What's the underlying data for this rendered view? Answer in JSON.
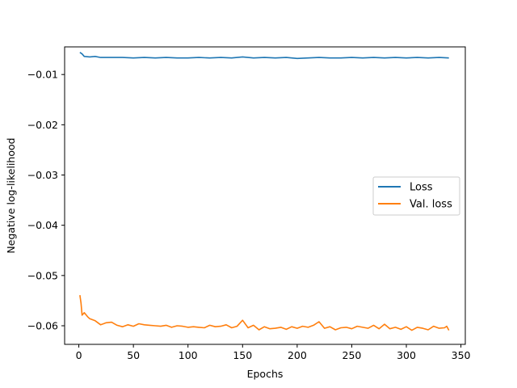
{
  "chart_data": {
    "type": "line",
    "title": "",
    "xlabel": "Epochs",
    "ylabel": "Negative log-likelihood",
    "xlim": [
      -13,
      354
    ],
    "ylim": [
      -0.0637,
      -0.0045
    ],
    "x_ticks": [
      0,
      50,
      100,
      150,
      200,
      250,
      300,
      350
    ],
    "x_tick_labels": [
      "0",
      "50",
      "100",
      "150",
      "200",
      "250",
      "300",
      "350"
    ],
    "y_ticks": [
      -0.01,
      -0.02,
      -0.03,
      -0.04,
      -0.05,
      -0.06
    ],
    "y_tick_labels": [
      "−0.01",
      "−0.02",
      "−0.03",
      "−0.04",
      "−0.05",
      "−0.06"
    ],
    "grid": false,
    "legend": {
      "position": "center-right",
      "entries": [
        "Loss",
        "Val. loss"
      ]
    },
    "series": [
      {
        "name": "Loss",
        "color": "#1f77b4",
        "x": [
          1,
          3,
          5,
          10,
          15,
          20,
          30,
          40,
          50,
          60,
          70,
          80,
          90,
          100,
          110,
          120,
          130,
          140,
          150,
          160,
          170,
          180,
          190,
          200,
          210,
          220,
          230,
          240,
          250,
          260,
          270,
          280,
          290,
          300,
          310,
          320,
          330,
          339
        ],
        "y": [
          -0.0056,
          -0.0059,
          -0.0064,
          -0.0065,
          -0.0064,
          -0.0066,
          -0.0066,
          -0.0066,
          -0.0067,
          -0.0066,
          -0.0067,
          -0.0066,
          -0.0067,
          -0.0067,
          -0.0066,
          -0.0067,
          -0.0066,
          -0.0067,
          -0.0065,
          -0.0067,
          -0.0066,
          -0.0067,
          -0.0066,
          -0.0068,
          -0.0067,
          -0.0066,
          -0.0067,
          -0.0067,
          -0.0066,
          -0.0067,
          -0.0066,
          -0.0067,
          -0.0066,
          -0.0067,
          -0.0066,
          -0.0067,
          -0.0066,
          -0.0067
        ]
      },
      {
        "name": "Val. loss",
        "color": "#ff7f0e",
        "x": [
          1,
          2,
          3,
          5,
          8,
          10,
          15,
          20,
          25,
          30,
          35,
          40,
          45,
          50,
          55,
          60,
          65,
          70,
          75,
          80,
          85,
          90,
          95,
          100,
          105,
          110,
          115,
          120,
          125,
          130,
          135,
          140,
          145,
          150,
          155,
          160,
          165,
          170,
          175,
          180,
          185,
          190,
          195,
          200,
          205,
          210,
          215,
          220,
          225,
          230,
          235,
          240,
          245,
          250,
          255,
          260,
          265,
          270,
          275,
          280,
          285,
          290,
          295,
          300,
          305,
          310,
          315,
          320,
          325,
          330,
          335,
          337,
          339
        ],
        "y": [
          -0.0539,
          -0.0555,
          -0.0579,
          -0.0574,
          -0.0582,
          -0.0586,
          -0.059,
          -0.0598,
          -0.0594,
          -0.0593,
          -0.0599,
          -0.0602,
          -0.0598,
          -0.0601,
          -0.0596,
          -0.0598,
          -0.0599,
          -0.06,
          -0.0601,
          -0.0599,
          -0.0603,
          -0.06,
          -0.0601,
          -0.0603,
          -0.0602,
          -0.0603,
          -0.0604,
          -0.0599,
          -0.0602,
          -0.0601,
          -0.0598,
          -0.0604,
          -0.0601,
          -0.0589,
          -0.0604,
          -0.0599,
          -0.0608,
          -0.0602,
          -0.0606,
          -0.0605,
          -0.0603,
          -0.0607,
          -0.0602,
          -0.0605,
          -0.0601,
          -0.0603,
          -0.0599,
          -0.0592,
          -0.0605,
          -0.0602,
          -0.0608,
          -0.0604,
          -0.0603,
          -0.0606,
          -0.0601,
          -0.0603,
          -0.0605,
          -0.0599,
          -0.0606,
          -0.0597,
          -0.0606,
          -0.0603,
          -0.0607,
          -0.0602,
          -0.0609,
          -0.0603,
          -0.0605,
          -0.0608,
          -0.0601,
          -0.0605,
          -0.0604,
          -0.0601,
          -0.0609
        ]
      }
    ]
  }
}
